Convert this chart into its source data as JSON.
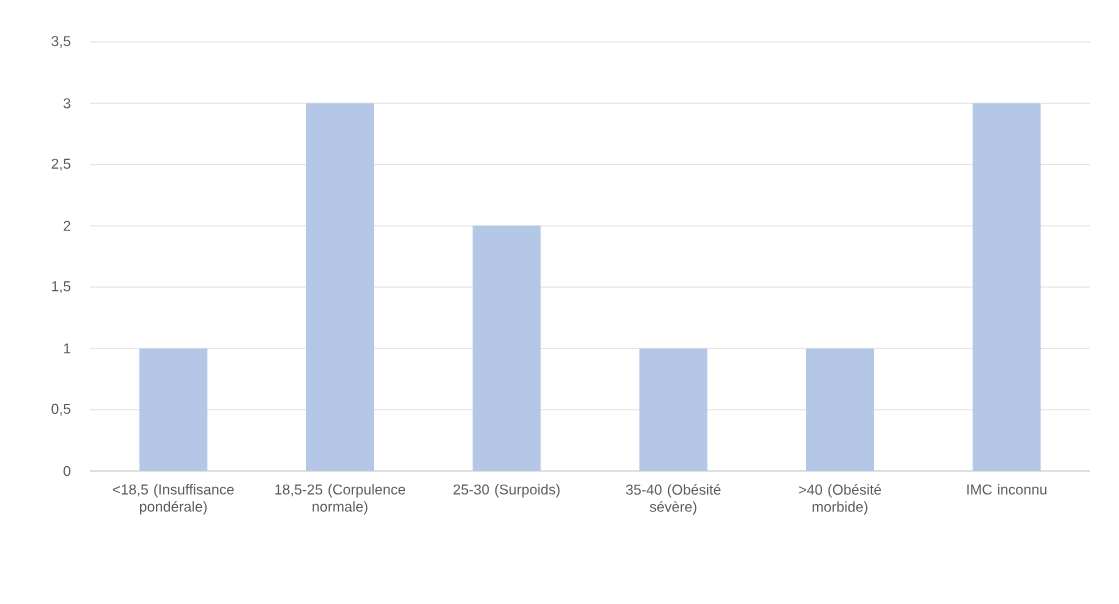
{
  "chart_data": {
    "type": "bar",
    "categories": [
      "<18,5 (Insuffisance pondérale)",
      "18,5-25 (Corpulence normale)",
      "25-30 (Surpoids)",
      "35-40 (Obésité sévère)",
      ">40 (Obésité morbide)",
      "IMC inconnu"
    ],
    "values": [
      1,
      3,
      2,
      1,
      1,
      3
    ],
    "color": "#b4c7e7",
    "ylim": [
      0,
      3.5
    ],
    "yticks": [
      0,
      {
        "value": 0.5,
        "label": "0,5"
      },
      1,
      {
        "value": 1.5,
        "label": "1,5"
      },
      2,
      {
        "value": 2.5,
        "label": "2,5"
      },
      3,
      {
        "value": 3.5,
        "label": "3,5"
      }
    ],
    "grid": "y"
  }
}
